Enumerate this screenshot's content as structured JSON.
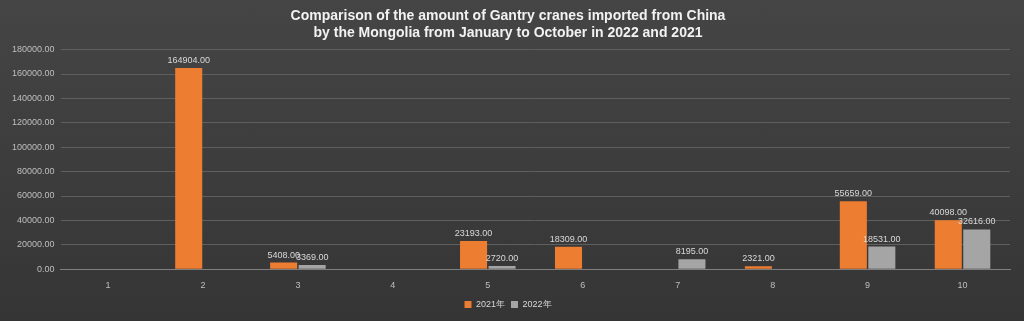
{
  "chart_data": {
    "type": "bar",
    "title": "Comparison of the amount of Gantry cranes imported from China by the Mongolia from January to October in 2022 and 2021",
    "categories": [
      "1",
      "2",
      "3",
      "4",
      "5",
      "6",
      "7",
      "8",
      "9",
      "10"
    ],
    "series": [
      {
        "name": "2021年",
        "color": "#ed7d31",
        "values": [
          null,
          164904,
          5408,
          null,
          23193,
          18309,
          null,
          2321,
          55659,
          40098
        ],
        "value_labels": [
          null,
          "164904.00",
          "5408.00",
          null,
          "23193.00",
          "18309.00",
          null,
          "2321.00",
          "55659.00",
          "40098.00"
        ]
      },
      {
        "name": "2022年",
        "color": "#a5a5a5",
        "values": [
          null,
          null,
          3369,
          null,
          2720,
          null,
          8195,
          null,
          18531,
          32616
        ],
        "value_labels": [
          null,
          null,
          "3369.00",
          null,
          "2720.00",
          null,
          "8195.00",
          null,
          "18531.00",
          "32616.00"
        ]
      }
    ],
    "ylim": [
      0,
      180000
    ],
    "yticks": [
      {
        "value": 0,
        "label": "0.00"
      },
      {
        "value": 20000,
        "label": "20000.00"
      },
      {
        "value": 40000,
        "label": "40000.00"
      },
      {
        "value": 60000,
        "label": "60000.00"
      },
      {
        "value": 80000,
        "label": "80000.00"
      },
      {
        "value": 100000,
        "label": "100000.00"
      },
      {
        "value": 120000,
        "label": "120000.00"
      },
      {
        "value": 140000,
        "label": "140000.00"
      },
      {
        "value": 160000,
        "label": "160000.00"
      },
      {
        "value": 180000,
        "label": "180000.00"
      }
    ],
    "grid": true,
    "legend": "bottom",
    "data_labels": true
  }
}
